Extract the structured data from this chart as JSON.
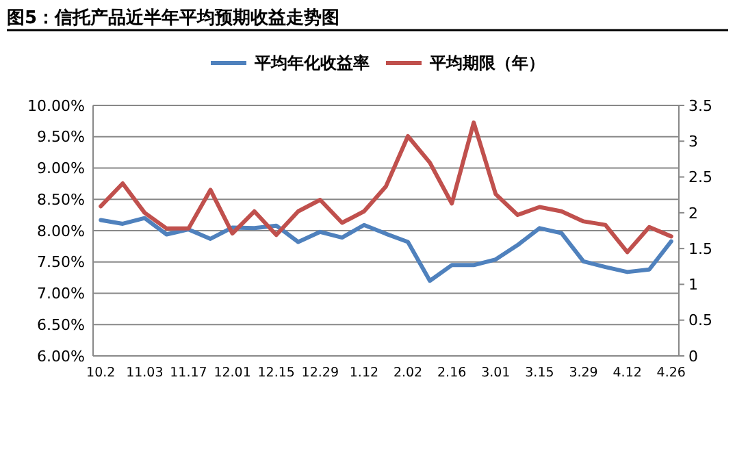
{
  "chart_data": {
    "type": "line",
    "title": "图5：信托产品近半年平均预期收益走势图",
    "categories": [
      "10.2",
      null,
      "11.03",
      null,
      "11.17",
      null,
      "12.01",
      null,
      "12.15",
      null,
      "12.29",
      null,
      "1.12",
      null,
      "2.02",
      null,
      "2.16",
      null,
      "3.01",
      null,
      "3.15",
      null,
      "3.29",
      null,
      "4.12",
      null,
      "4.26"
    ],
    "series": [
      {
        "name": "平均年化收益率",
        "color": "#4f81bd",
        "values": [
          8.17,
          8.11,
          8.2,
          7.94,
          8.02,
          7.87,
          8.05,
          8.04,
          8.08,
          7.82,
          7.98,
          7.89,
          8.09,
          7.95,
          7.82,
          7.2,
          7.45,
          7.45,
          7.54,
          7.77,
          8.04,
          7.96,
          7.51,
          7.42,
          7.34,
          7.38,
          7.83
        ]
      },
      {
        "name": "平均期限（年）",
        "color": "#c0504d",
        "axis": "y2",
        "values": [
          2.09,
          2.41,
          2.0,
          1.78,
          1.78,
          2.32,
          1.71,
          2.02,
          1.69,
          2.02,
          2.18,
          1.86,
          2.02,
          2.37,
          3.07,
          2.7,
          2.13,
          3.26,
          2.26,
          1.97,
          2.08,
          2.02,
          1.88,
          1.83,
          1.45,
          1.8,
          1.67
        ]
      }
    ],
    "ylim": [
      6,
      10
    ],
    "yticks": [
      {
        "value": 6,
        "label": "6.00%"
      },
      {
        "value": 6.5,
        "label": "6.50%"
      },
      {
        "value": 7,
        "label": "7.00%"
      },
      {
        "value": 7.5,
        "label": "7.50%"
      },
      {
        "value": 8,
        "label": "8.00%"
      },
      {
        "value": 8.5,
        "label": "8.50%"
      },
      {
        "value": 9,
        "label": "9.00%"
      },
      {
        "value": 9.5,
        "label": "9.50%"
      },
      {
        "value": 10,
        "label": "10.00%"
      }
    ],
    "y2lim": [
      0,
      3.5
    ],
    "y2ticks": [
      0,
      0.5,
      1,
      1.5,
      2,
      2.5,
      3,
      3.5
    ],
    "grid": "y",
    "legend": "top",
    "marker": "none",
    "line_style": "solid"
  }
}
